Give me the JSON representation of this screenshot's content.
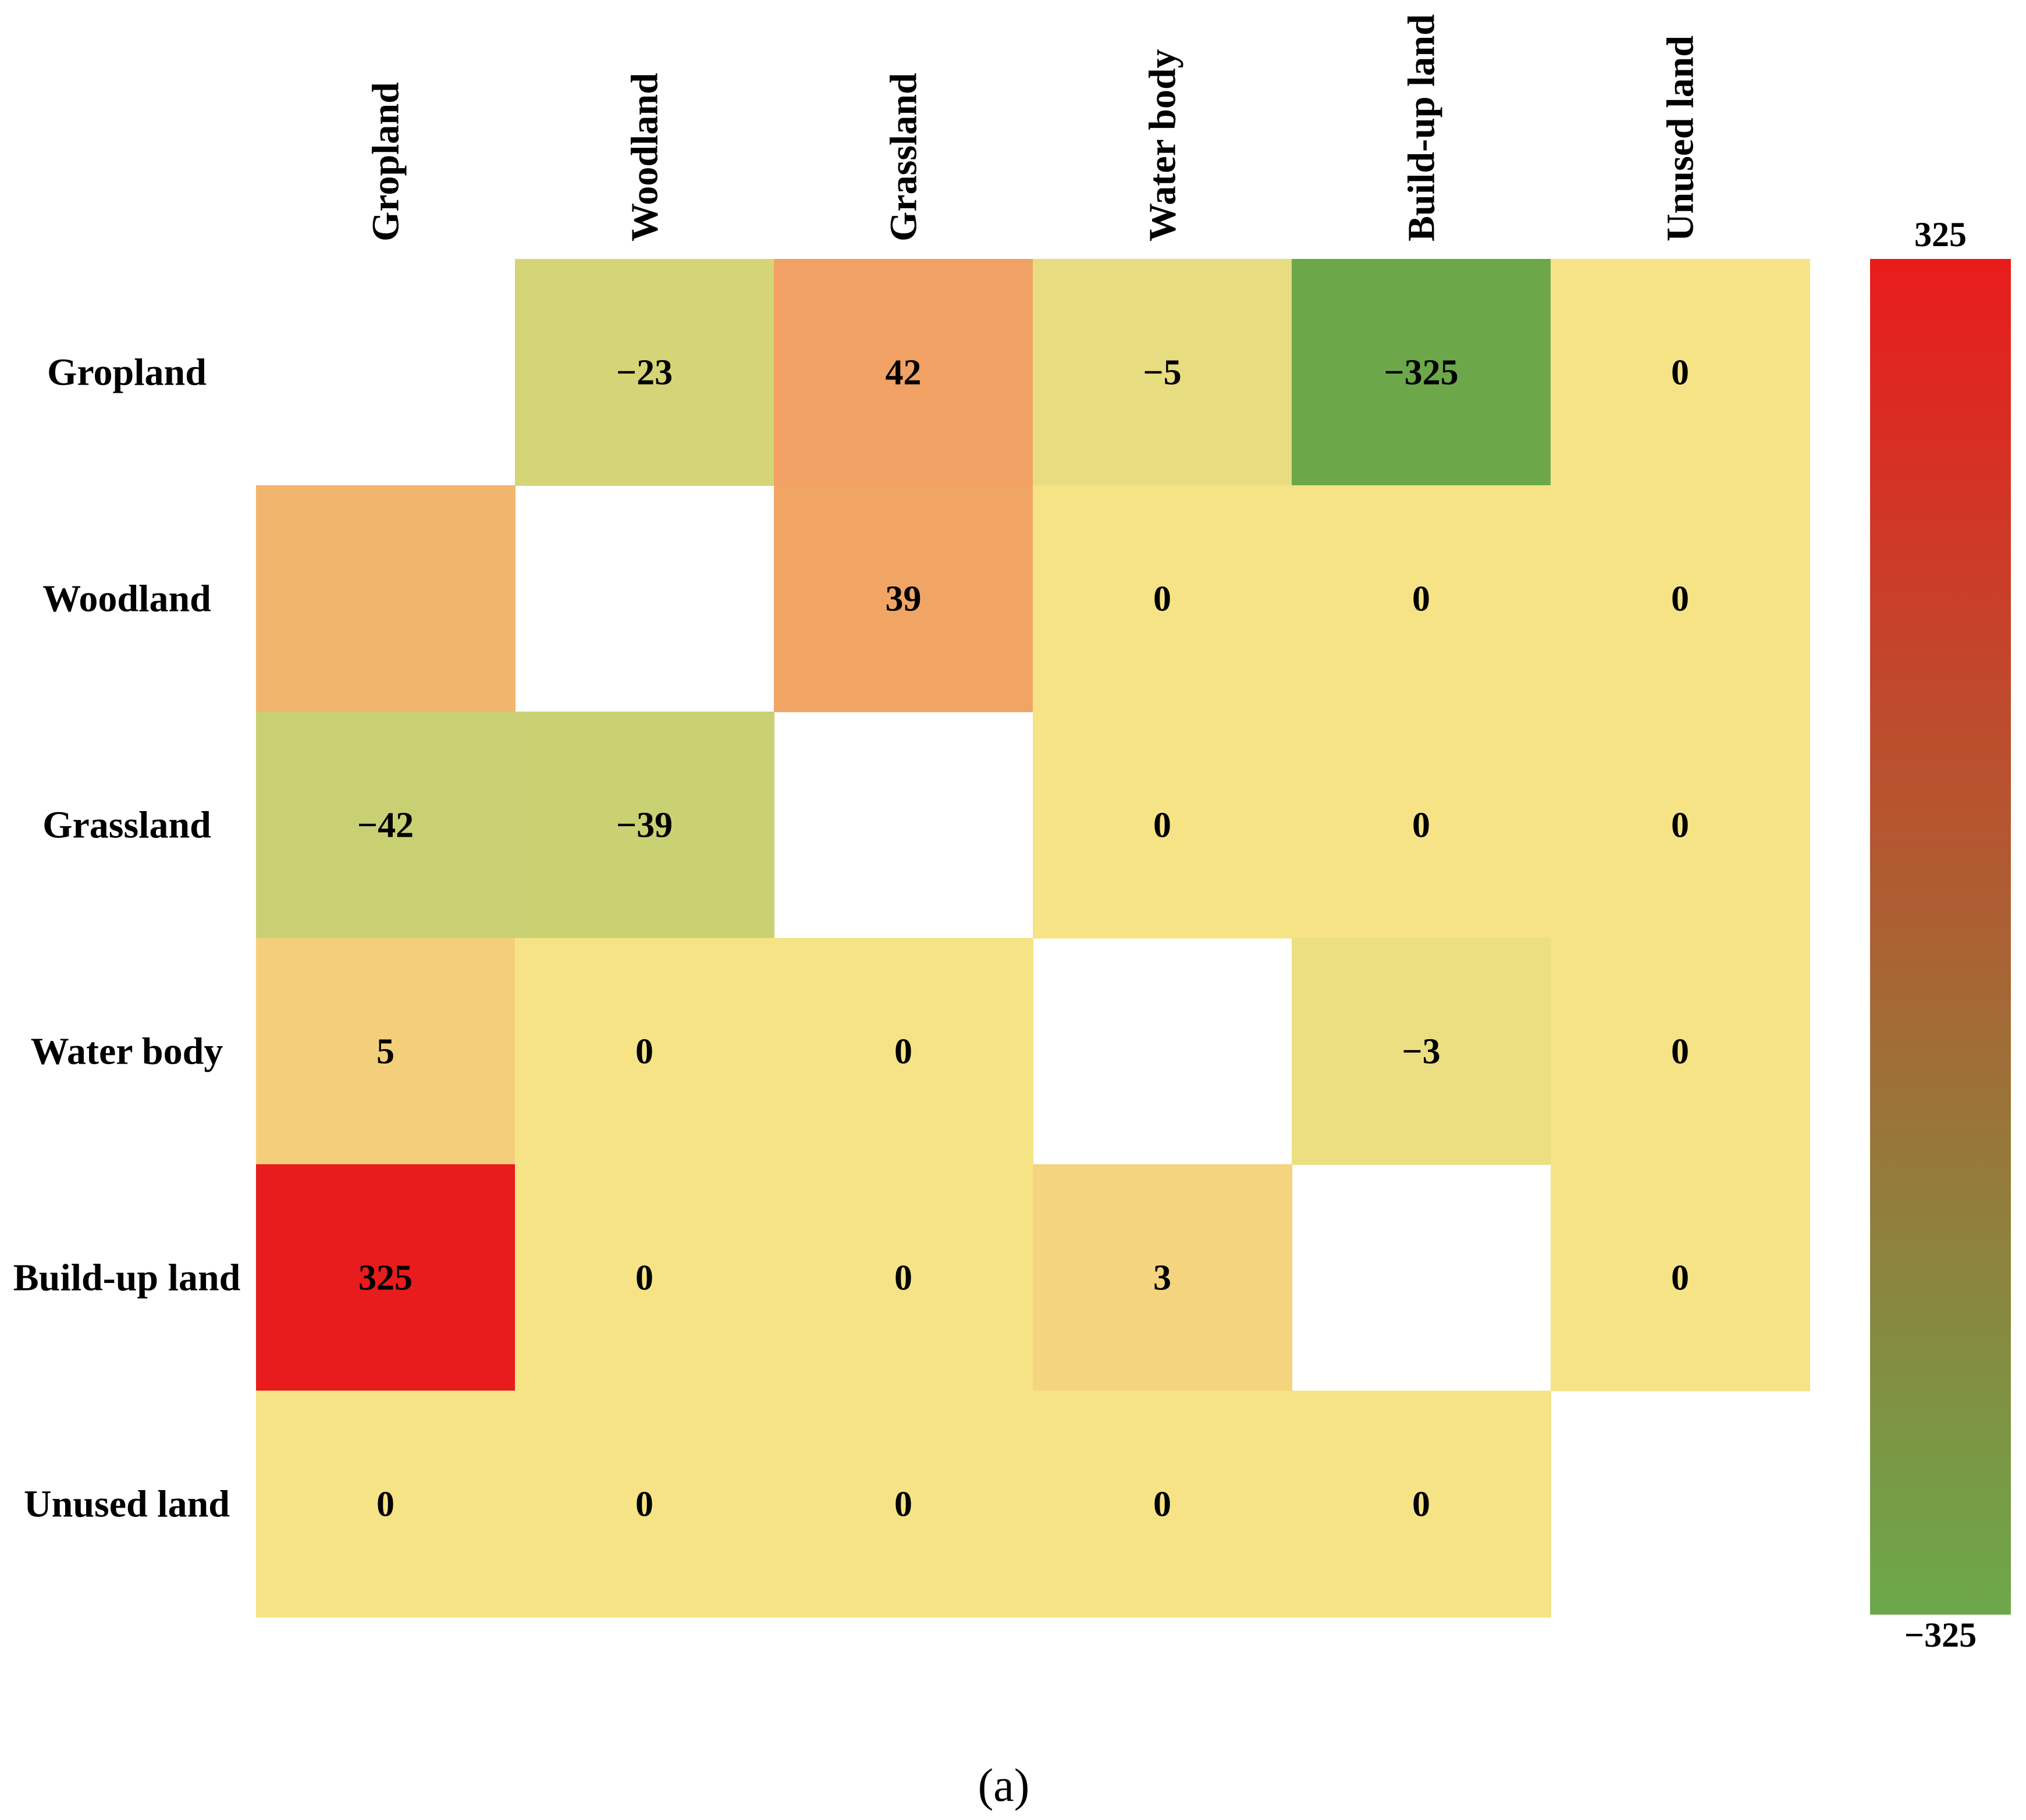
{
  "chart_data": {
    "type": "heatmap",
    "title": "",
    "categories_x": [
      "Gropland",
      "Woodland",
      "Grassland",
      "Water body",
      "Build-up land",
      "Unused land"
    ],
    "categories_y": [
      "Gropland",
      "Woodland",
      "Grassland",
      "Water body",
      "Build-up land",
      "Unused land"
    ],
    "values": [
      [
        null,
        -23,
        42,
        -5,
        -325,
        0
      ],
      [
        23,
        null,
        39,
        0,
        0,
        0
      ],
      [
        -42,
        -39,
        null,
        0,
        0,
        0
      ],
      [
        5,
        0,
        0,
        null,
        -3,
        0
      ],
      [
        325,
        0,
        0,
        3,
        null,
        0
      ],
      [
        0,
        0,
        0,
        0,
        0,
        null
      ]
    ],
    "value_labels": [
      [
        null,
        "−23",
        "42",
        "−5",
        "−325",
        "0"
      ],
      [
        null,
        null,
        "39",
        "0",
        "0",
        "0"
      ],
      [
        "−42",
        "−39",
        null,
        "0",
        "0",
        "0"
      ],
      [
        "5",
        "0",
        "0",
        null,
        "−3",
        "0"
      ],
      [
        "325",
        "0",
        "0",
        "3",
        null,
        "0"
      ],
      [
        "0",
        "0",
        "0",
        "0",
        "0",
        null
      ]
    ],
    "colorbar": {
      "min": -325,
      "max": 325,
      "max_label": "325",
      "min_label": "−325",
      "color_high": "#e81c1c",
      "color_low": "#6ca84a",
      "color_zero": "#f5e386"
    },
    "caption": "(a)"
  }
}
